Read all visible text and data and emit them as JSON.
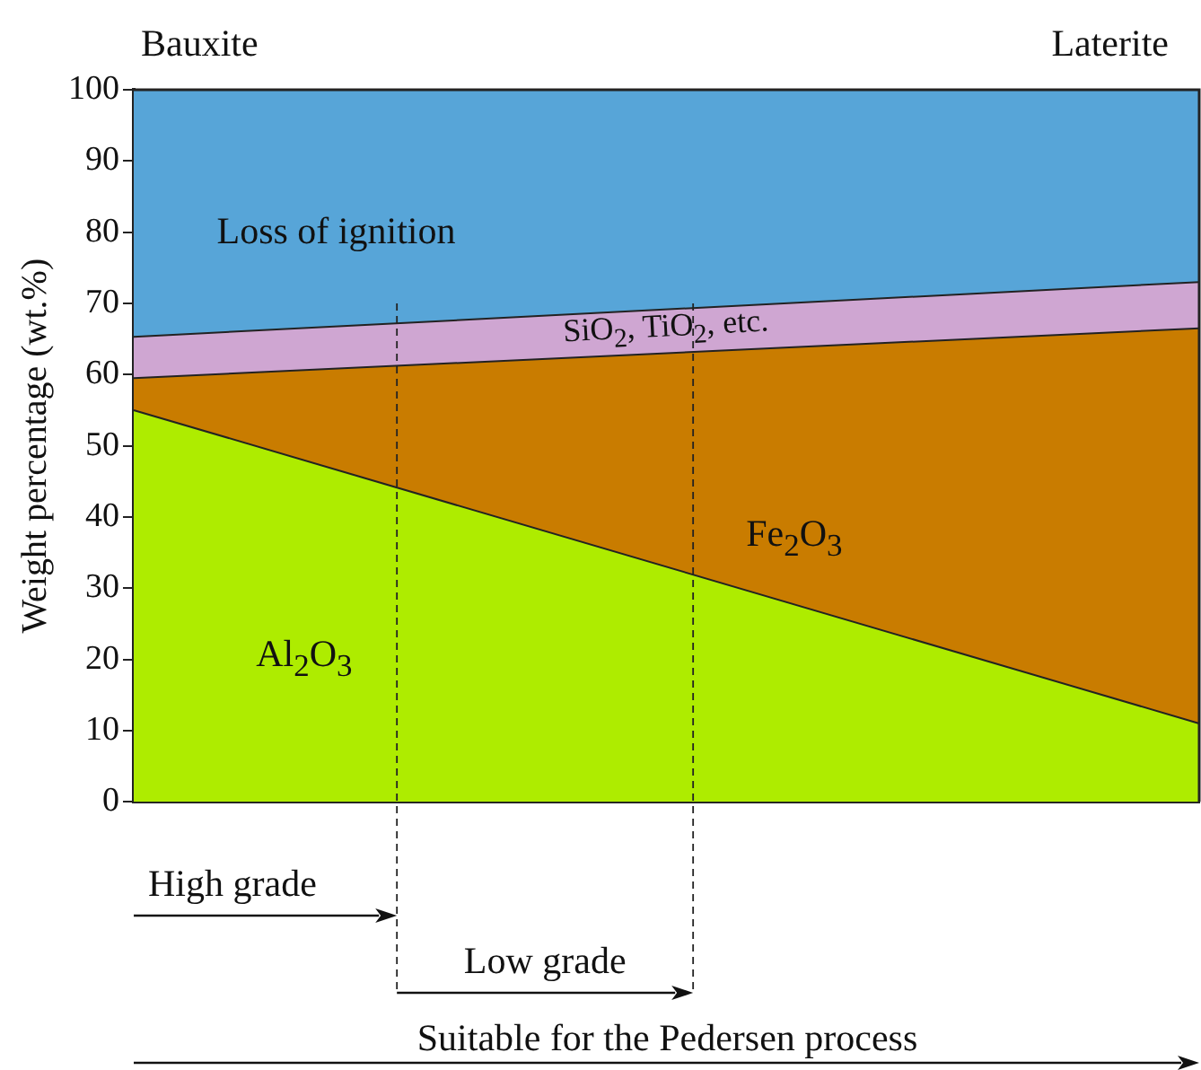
{
  "chart_data": {
    "type": "area",
    "stacked": true,
    "ylabel": "Weight percentage (wt.%)",
    "categories": [
      null,
      null
    ],
    "series": [
      {
        "name": "Al$_{2}$O$_{3}$",
        "color": "#aeec00",
        "values": [
          55,
          11
        ]
      },
      {
        "name": "Fe$_{2}$O$_{3}$",
        "color": "#c97c00",
        "values": [
          4.5,
          55.5
        ]
      },
      {
        "name": "SiO$_{2}$, TiO$_{2}$, etc.",
        "color": "#cfa6d2",
        "values": [
          5.8,
          6.5
        ]
      },
      {
        "name": "Loss of ignition",
        "color": "#57a5d8",
        "values": [
          34.7,
          27
        ]
      }
    ],
    "ylim": [
      0,
      100
    ],
    "yticks": [
      0,
      10,
      20,
      30,
      40,
      50,
      60,
      70,
      80,
      90,
      100
    ],
    "legend": false,
    "annotations": [
      "Bauxite",
      "Laterite",
      "High grade",
      "Low grade",
      "Suitable for the Pedersen process"
    ]
  }
}
